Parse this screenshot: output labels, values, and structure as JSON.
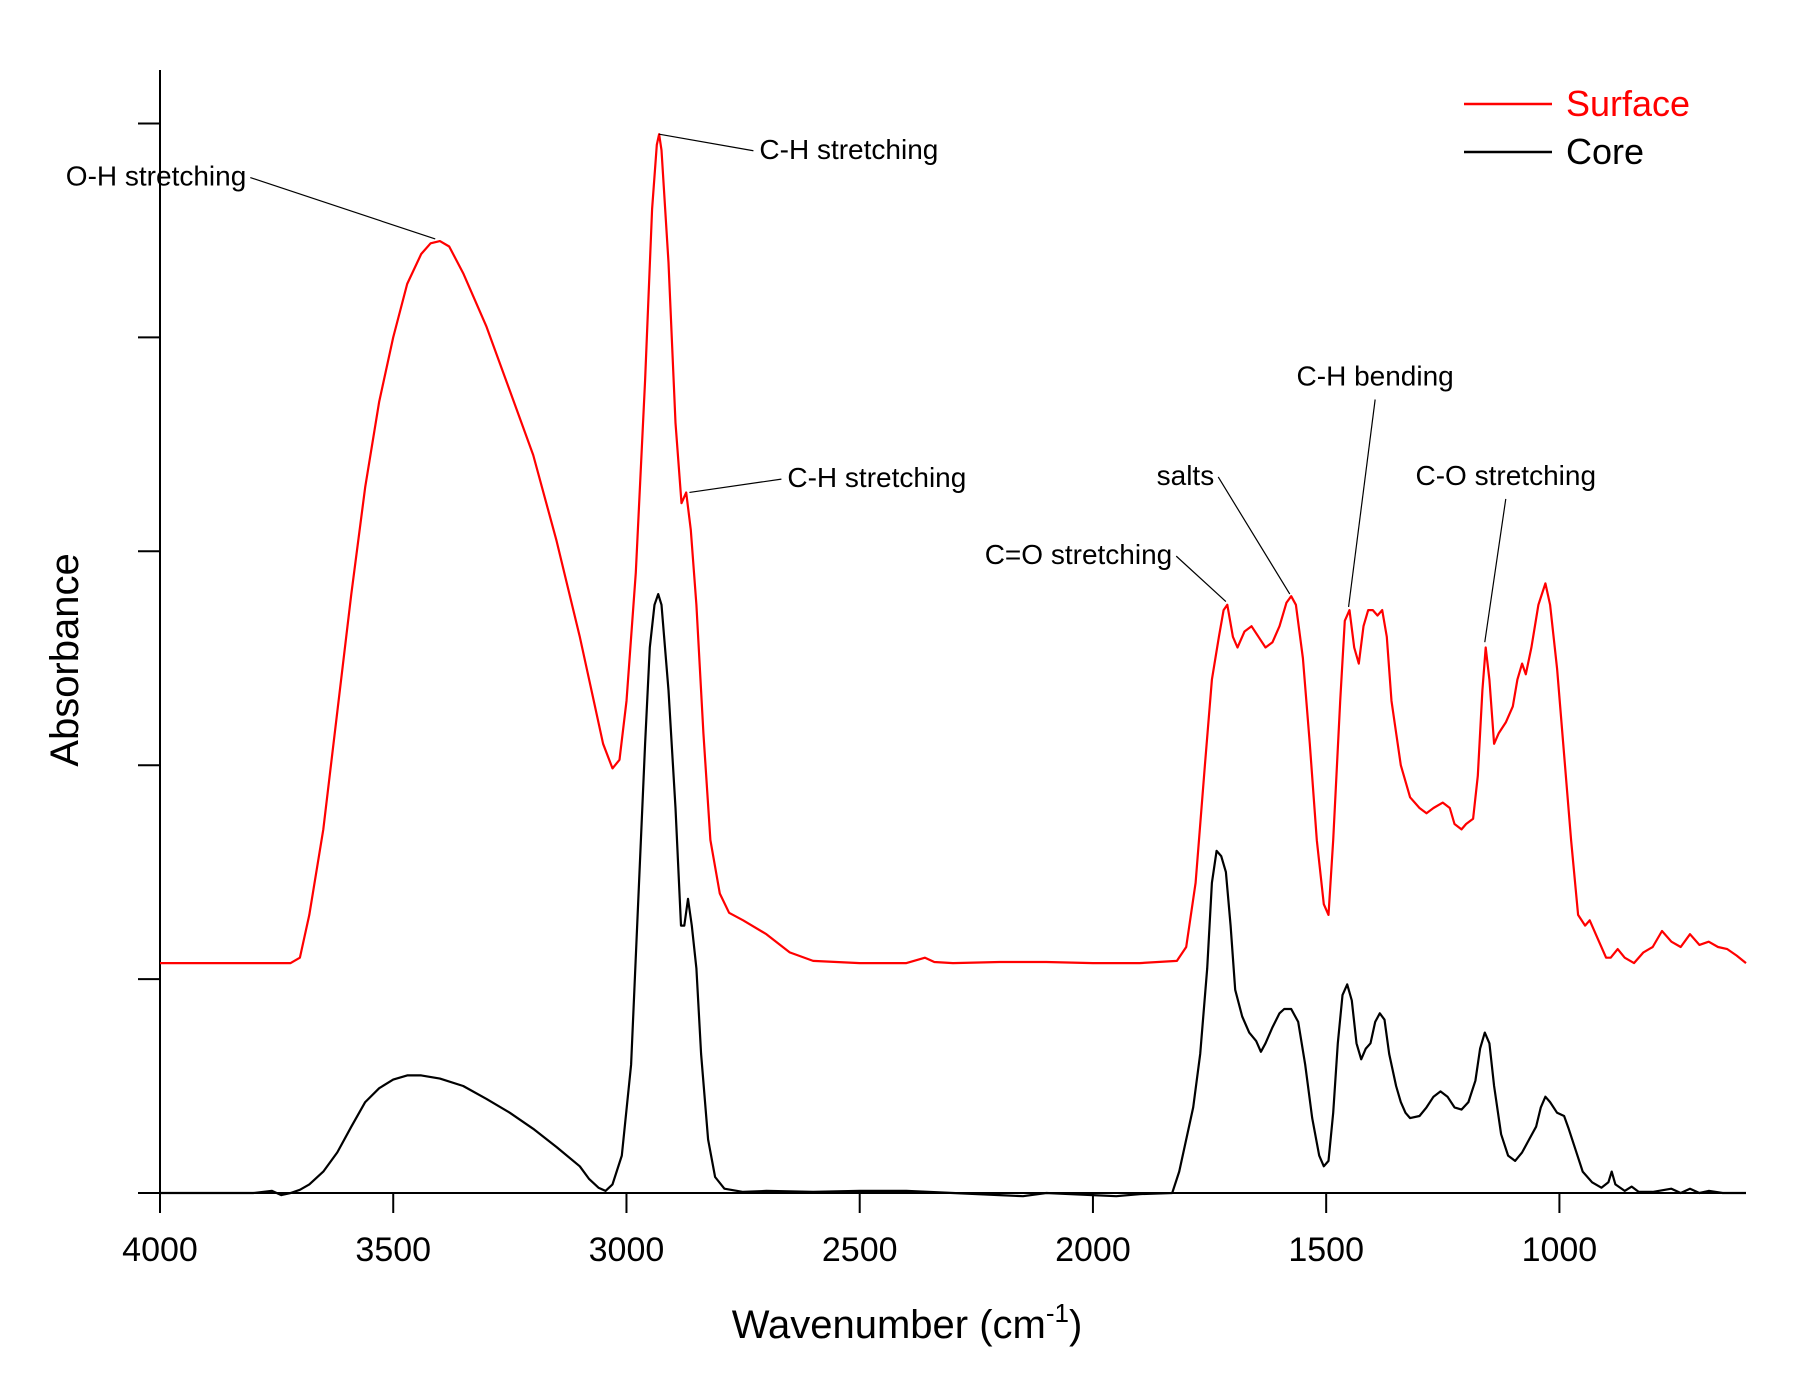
{
  "chart_data": {
    "type": "line",
    "xlabel": "Wavenumber",
    "xlabel_unit_base": "cm",
    "xlabel_unit_exp": "-1",
    "ylabel": "Absorbance",
    "xlim": [
      4000,
      600
    ],
    "ylim": [
      0,
      10.5
    ],
    "x_reversed": true,
    "y_tick_labels_shown": false,
    "grid": false,
    "legend_position": "top-right",
    "x_ticks": [
      4000,
      3500,
      3000,
      2500,
      2000,
      1500,
      1000
    ],
    "y_ticks": [
      0,
      2,
      4,
      6,
      8,
      10
    ],
    "series": [
      {
        "name": "Surface",
        "color": "#ff0000",
        "points": [
          [
            4000,
            2.15
          ],
          [
            3900,
            2.15
          ],
          [
            3800,
            2.15
          ],
          [
            3720,
            2.15
          ],
          [
            3700,
            2.2
          ],
          [
            3680,
            2.6
          ],
          [
            3650,
            3.4
          ],
          [
            3620,
            4.5
          ],
          [
            3590,
            5.6
          ],
          [
            3560,
            6.6
          ],
          [
            3530,
            7.4
          ],
          [
            3500,
            8.0
          ],
          [
            3470,
            8.5
          ],
          [
            3440,
            8.78
          ],
          [
            3420,
            8.88
          ],
          [
            3400,
            8.9
          ],
          [
            3380,
            8.85
          ],
          [
            3350,
            8.6
          ],
          [
            3300,
            8.1
          ],
          [
            3250,
            7.5
          ],
          [
            3200,
            6.9
          ],
          [
            3150,
            6.1
          ],
          [
            3100,
            5.2
          ],
          [
            3070,
            4.6
          ],
          [
            3050,
            4.2
          ],
          [
            3030,
            3.97
          ],
          [
            3015,
            4.05
          ],
          [
            3000,
            4.6
          ],
          [
            2980,
            5.8
          ],
          [
            2960,
            7.6
          ],
          [
            2945,
            9.2
          ],
          [
            2935,
            9.8
          ],
          [
            2930,
            9.9
          ],
          [
            2925,
            9.75
          ],
          [
            2910,
            8.7
          ],
          [
            2895,
            7.2
          ],
          [
            2882,
            6.45
          ],
          [
            2872,
            6.55
          ],
          [
            2862,
            6.2
          ],
          [
            2850,
            5.5
          ],
          [
            2835,
            4.3
          ],
          [
            2820,
            3.3
          ],
          [
            2800,
            2.8
          ],
          [
            2780,
            2.62
          ],
          [
            2750,
            2.55
          ],
          [
            2700,
            2.42
          ],
          [
            2650,
            2.25
          ],
          [
            2600,
            2.17
          ],
          [
            2500,
            2.15
          ],
          [
            2400,
            2.15
          ],
          [
            2360,
            2.2
          ],
          [
            2340,
            2.16
          ],
          [
            2300,
            2.15
          ],
          [
            2200,
            2.16
          ],
          [
            2100,
            2.16
          ],
          [
            2000,
            2.15
          ],
          [
            1900,
            2.15
          ],
          [
            1820,
            2.17
          ],
          [
            1800,
            2.3
          ],
          [
            1780,
            2.9
          ],
          [
            1760,
            4.0
          ],
          [
            1745,
            4.8
          ],
          [
            1730,
            5.2
          ],
          [
            1720,
            5.45
          ],
          [
            1712,
            5.5
          ],
          [
            1700,
            5.2
          ],
          [
            1690,
            5.1
          ],
          [
            1675,
            5.25
          ],
          [
            1660,
            5.3
          ],
          [
            1645,
            5.2
          ],
          [
            1630,
            5.1
          ],
          [
            1615,
            5.15
          ],
          [
            1600,
            5.3
          ],
          [
            1585,
            5.52
          ],
          [
            1575,
            5.58
          ],
          [
            1565,
            5.5
          ],
          [
            1550,
            5.0
          ],
          [
            1535,
            4.2
          ],
          [
            1520,
            3.3
          ],
          [
            1505,
            2.7
          ],
          [
            1495,
            2.6
          ],
          [
            1485,
            3.3
          ],
          [
            1470,
            4.6
          ],
          [
            1460,
            5.35
          ],
          [
            1450,
            5.45
          ],
          [
            1440,
            5.1
          ],
          [
            1430,
            4.95
          ],
          [
            1420,
            5.3
          ],
          [
            1410,
            5.45
          ],
          [
            1400,
            5.45
          ],
          [
            1390,
            5.4
          ],
          [
            1380,
            5.45
          ],
          [
            1370,
            5.2
          ],
          [
            1360,
            4.6
          ],
          [
            1340,
            4.0
          ],
          [
            1320,
            3.7
          ],
          [
            1300,
            3.6
          ],
          [
            1285,
            3.55
          ],
          [
            1270,
            3.6
          ],
          [
            1250,
            3.65
          ],
          [
            1235,
            3.6
          ],
          [
            1225,
            3.45
          ],
          [
            1210,
            3.4
          ],
          [
            1200,
            3.45
          ],
          [
            1185,
            3.5
          ],
          [
            1175,
            3.9
          ],
          [
            1165,
            4.7
          ],
          [
            1158,
            5.1
          ],
          [
            1150,
            4.8
          ],
          [
            1140,
            4.2
          ],
          [
            1130,
            4.3
          ],
          [
            1115,
            4.4
          ],
          [
            1100,
            4.55
          ],
          [
            1090,
            4.8
          ],
          [
            1080,
            4.95
          ],
          [
            1072,
            4.85
          ],
          [
            1060,
            5.1
          ],
          [
            1045,
            5.5
          ],
          [
            1030,
            5.7
          ],
          [
            1020,
            5.5
          ],
          [
            1005,
            4.9
          ],
          [
            990,
            4.1
          ],
          [
            975,
            3.3
          ],
          [
            960,
            2.6
          ],
          [
            945,
            2.5
          ],
          [
            935,
            2.55
          ],
          [
            920,
            2.4
          ],
          [
            900,
            2.2
          ],
          [
            890,
            2.2
          ],
          [
            875,
            2.28
          ],
          [
            860,
            2.2
          ],
          [
            840,
            2.15
          ],
          [
            820,
            2.25
          ],
          [
            800,
            2.3
          ],
          [
            780,
            2.45
          ],
          [
            760,
            2.35
          ],
          [
            740,
            2.3
          ],
          [
            720,
            2.42
          ],
          [
            700,
            2.32
          ],
          [
            680,
            2.35
          ],
          [
            660,
            2.3
          ],
          [
            640,
            2.28
          ],
          [
            620,
            2.22
          ],
          [
            600,
            2.15
          ]
        ]
      },
      {
        "name": "Core",
        "color": "#000000",
        "points": [
          [
            4000,
            0.0
          ],
          [
            3900,
            0.0
          ],
          [
            3800,
            0.0
          ],
          [
            3760,
            0.02
          ],
          [
            3740,
            -0.02
          ],
          [
            3720,
            0.0
          ],
          [
            3700,
            0.03
          ],
          [
            3680,
            0.08
          ],
          [
            3650,
            0.2
          ],
          [
            3620,
            0.38
          ],
          [
            3590,
            0.62
          ],
          [
            3560,
            0.85
          ],
          [
            3530,
            0.98
          ],
          [
            3500,
            1.06
          ],
          [
            3470,
            1.1
          ],
          [
            3440,
            1.1
          ],
          [
            3400,
            1.07
          ],
          [
            3350,
            1.0
          ],
          [
            3300,
            0.88
          ],
          [
            3250,
            0.75
          ],
          [
            3200,
            0.6
          ],
          [
            3150,
            0.43
          ],
          [
            3100,
            0.25
          ],
          [
            3080,
            0.13
          ],
          [
            3060,
            0.05
          ],
          [
            3045,
            0.02
          ],
          [
            3030,
            0.08
          ],
          [
            3010,
            0.35
          ],
          [
            2990,
            1.2
          ],
          [
            2975,
            2.7
          ],
          [
            2960,
            4.2
          ],
          [
            2950,
            5.1
          ],
          [
            2940,
            5.5
          ],
          [
            2932,
            5.6
          ],
          [
            2925,
            5.5
          ],
          [
            2910,
            4.7
          ],
          [
            2895,
            3.6
          ],
          [
            2883,
            2.5
          ],
          [
            2876,
            2.5
          ],
          [
            2868,
            2.75
          ],
          [
            2860,
            2.5
          ],
          [
            2850,
            2.1
          ],
          [
            2840,
            1.3
          ],
          [
            2825,
            0.5
          ],
          [
            2810,
            0.15
          ],
          [
            2790,
            0.04
          ],
          [
            2750,
            0.01
          ],
          [
            2700,
            0.02
          ],
          [
            2600,
            0.01
          ],
          [
            2500,
            0.02
          ],
          [
            2400,
            0.02
          ],
          [
            2300,
            0.0
          ],
          [
            2200,
            -0.02
          ],
          [
            2150,
            -0.03
          ],
          [
            2100,
            0.0
          ],
          [
            2000,
            -0.02
          ],
          [
            1950,
            -0.03
          ],
          [
            1900,
            -0.01
          ],
          [
            1830,
            0.0
          ],
          [
            1815,
            0.2
          ],
          [
            1800,
            0.5
          ],
          [
            1785,
            0.8
          ],
          [
            1770,
            1.3
          ],
          [
            1755,
            2.1
          ],
          [
            1745,
            2.9
          ],
          [
            1735,
            3.2
          ],
          [
            1725,
            3.15
          ],
          [
            1715,
            3.0
          ],
          [
            1705,
            2.5
          ],
          [
            1695,
            1.9
          ],
          [
            1680,
            1.65
          ],
          [
            1665,
            1.5
          ],
          [
            1650,
            1.42
          ],
          [
            1640,
            1.32
          ],
          [
            1630,
            1.4
          ],
          [
            1615,
            1.55
          ],
          [
            1600,
            1.68
          ],
          [
            1590,
            1.72
          ],
          [
            1575,
            1.72
          ],
          [
            1560,
            1.6
          ],
          [
            1545,
            1.2
          ],
          [
            1530,
            0.7
          ],
          [
            1515,
            0.35
          ],
          [
            1505,
            0.25
          ],
          [
            1495,
            0.3
          ],
          [
            1485,
            0.75
          ],
          [
            1475,
            1.4
          ],
          [
            1465,
            1.85
          ],
          [
            1455,
            1.95
          ],
          [
            1445,
            1.8
          ],
          [
            1435,
            1.4
          ],
          [
            1425,
            1.25
          ],
          [
            1415,
            1.35
          ],
          [
            1405,
            1.4
          ],
          [
            1395,
            1.6
          ],
          [
            1385,
            1.68
          ],
          [
            1375,
            1.62
          ],
          [
            1365,
            1.3
          ],
          [
            1350,
            1.0
          ],
          [
            1340,
            0.85
          ],
          [
            1330,
            0.75
          ],
          [
            1320,
            0.7
          ],
          [
            1300,
            0.72
          ],
          [
            1285,
            0.8
          ],
          [
            1270,
            0.9
          ],
          [
            1255,
            0.95
          ],
          [
            1240,
            0.9
          ],
          [
            1225,
            0.8
          ],
          [
            1210,
            0.78
          ],
          [
            1195,
            0.85
          ],
          [
            1180,
            1.05
          ],
          [
            1170,
            1.35
          ],
          [
            1160,
            1.5
          ],
          [
            1150,
            1.4
          ],
          [
            1140,
            1.0
          ],
          [
            1125,
            0.55
          ],
          [
            1110,
            0.35
          ],
          [
            1095,
            0.3
          ],
          [
            1080,
            0.38
          ],
          [
            1065,
            0.5
          ],
          [
            1050,
            0.62
          ],
          [
            1040,
            0.8
          ],
          [
            1030,
            0.9
          ],
          [
            1020,
            0.85
          ],
          [
            1005,
            0.75
          ],
          [
            990,
            0.72
          ],
          [
            980,
            0.6
          ],
          [
            965,
            0.4
          ],
          [
            950,
            0.2
          ],
          [
            930,
            0.1
          ],
          [
            910,
            0.05
          ],
          [
            895,
            0.1
          ],
          [
            888,
            0.2
          ],
          [
            880,
            0.08
          ],
          [
            860,
            0.02
          ],
          [
            845,
            0.06
          ],
          [
            830,
            0.01
          ],
          [
            800,
            0.01
          ],
          [
            760,
            0.04
          ],
          [
            740,
            0.0
          ],
          [
            720,
            0.04
          ],
          [
            700,
            0.0
          ],
          [
            680,
            0.02
          ],
          [
            650,
            0.0
          ],
          [
            620,
            0.0
          ],
          [
            600,
            0.0
          ]
        ]
      }
    ],
    "annotations": [
      {
        "text": "O-H stretching",
        "target": [
          3410,
          8.92
        ],
        "text_at": [
          3815,
          9.42
        ],
        "anchor": "end"
      },
      {
        "text": "C-H stretching",
        "target": [
          2930,
          9.9
        ],
        "text_at": [
          2715,
          9.67
        ],
        "anchor": "start"
      },
      {
        "text": "C-H stretching",
        "target": [
          2865,
          6.55
        ],
        "text_at": [
          2655,
          6.6
        ],
        "anchor": "start"
      },
      {
        "text": "C=O stretching",
        "target": [
          1715,
          5.53
        ],
        "text_at": [
          1830,
          5.88
        ],
        "anchor": "end"
      },
      {
        "text": "salts",
        "target": [
          1578,
          5.6
        ],
        "text_at": [
          1740,
          6.62
        ],
        "anchor": "end"
      },
      {
        "text": "C-H bending",
        "target": [
          1452,
          5.48
        ],
        "text_at": [
          1395,
          7.55
        ],
        "anchor": "middle"
      },
      {
        "text": "C-O stretching",
        "target": [
          1160,
          5.15
        ],
        "text_at": [
          1115,
          6.62
        ],
        "anchor": "middle"
      }
    ]
  }
}
